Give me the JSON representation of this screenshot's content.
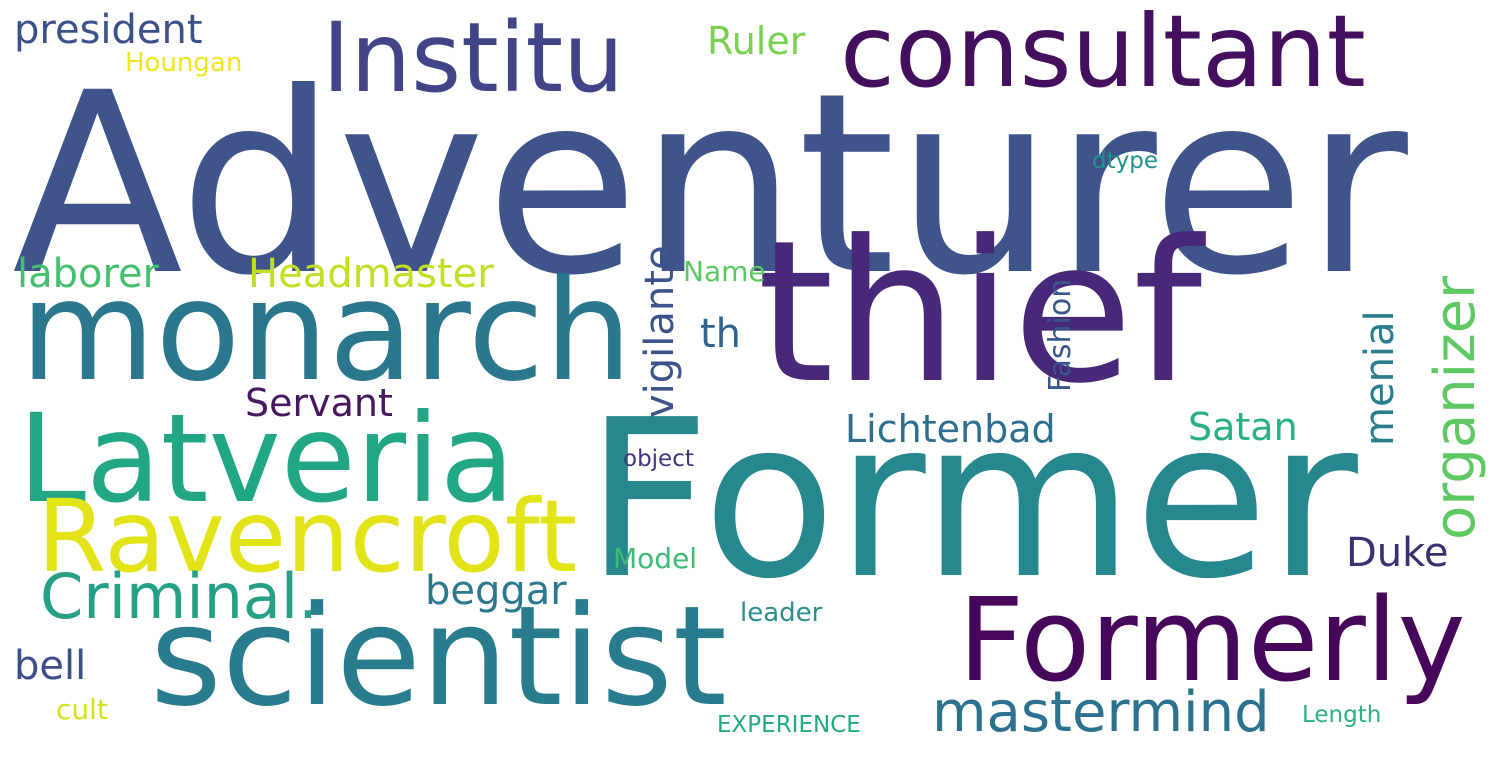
{
  "words": {
    "adventurer": {
      "text": "Adventurer",
      "color": "#3e548a"
    },
    "former": {
      "text": "Former",
      "color": "#26878e"
    },
    "thief": {
      "text": "thief",
      "color": "#482878"
    },
    "monarch": {
      "text": "monarch",
      "color": "#2b788e"
    },
    "scientist": {
      "text": "scientist",
      "color": "#297b8e"
    },
    "consultant": {
      "text": "consultant",
      "color": "#440f5d"
    },
    "latveria": {
      "text": "Latveria",
      "color": "#22a785"
    },
    "formerly": {
      "text": "Formerly",
      "color": "#46075a"
    },
    "ravencroft": {
      "text": "Ravencroft",
      "color": "#e2e418"
    },
    "institu": {
      "text": "Institu",
      "color": "#414487"
    },
    "criminal": {
      "text": "Criminal.",
      "color": "#25a087"
    },
    "mastermind": {
      "text": "mastermind",
      "color": "#2c728e"
    },
    "organizer": {
      "text": "organizer",
      "color": "#5ec962"
    },
    "headmaster": {
      "text": "Headmaster",
      "color": "#c2df23"
    },
    "laborer": {
      "text": "laborer",
      "color": "#44bf70"
    },
    "vigilante": {
      "text": "vigilante",
      "color": "#3b528b"
    },
    "president": {
      "text": "president",
      "color": "#3b518a"
    },
    "servant": {
      "text": "Servant",
      "color": "#46185f"
    },
    "lichtenbad": {
      "text": "Lichtenbad",
      "color": "#2e6e8e"
    },
    "satan": {
      "text": "Satan",
      "color": "#2ab07f"
    },
    "menial": {
      "text": "menial",
      "color": "#287d8e"
    },
    "beggar": {
      "text": "beggar",
      "color": "#2a788e"
    },
    "duke": {
      "text": "Duke",
      "color": "#3d2e6f"
    },
    "fashion": {
      "text": "Fashion",
      "color": "#39568c"
    },
    "th": {
      "text": "th",
      "color": "#33638d"
    },
    "bell": {
      "text": "bell",
      "color": "#3c4f8a"
    },
    "ruler": {
      "text": "Ruler",
      "color": "#7ad151"
    },
    "houngan": {
      "text": "Houngan",
      "color": "#f0e51f"
    },
    "name": {
      "text": "Name",
      "color": "#5cc863"
    },
    "model": {
      "text": "Model",
      "color": "#3bbb75"
    },
    "leader": {
      "text": "leader",
      "color": "#2a8e8c"
    },
    "object": {
      "text": "object",
      "color": "#45337d"
    },
    "dtype": {
      "text": "dtype",
      "color": "#20938c"
    },
    "cult": {
      "text": "cult",
      "color": "#d5e21a"
    },
    "experience": {
      "text": "EXPERIENCE",
      "color": "#23a983"
    },
    "length": {
      "text": "Length",
      "color": "#2db27d"
    }
  }
}
